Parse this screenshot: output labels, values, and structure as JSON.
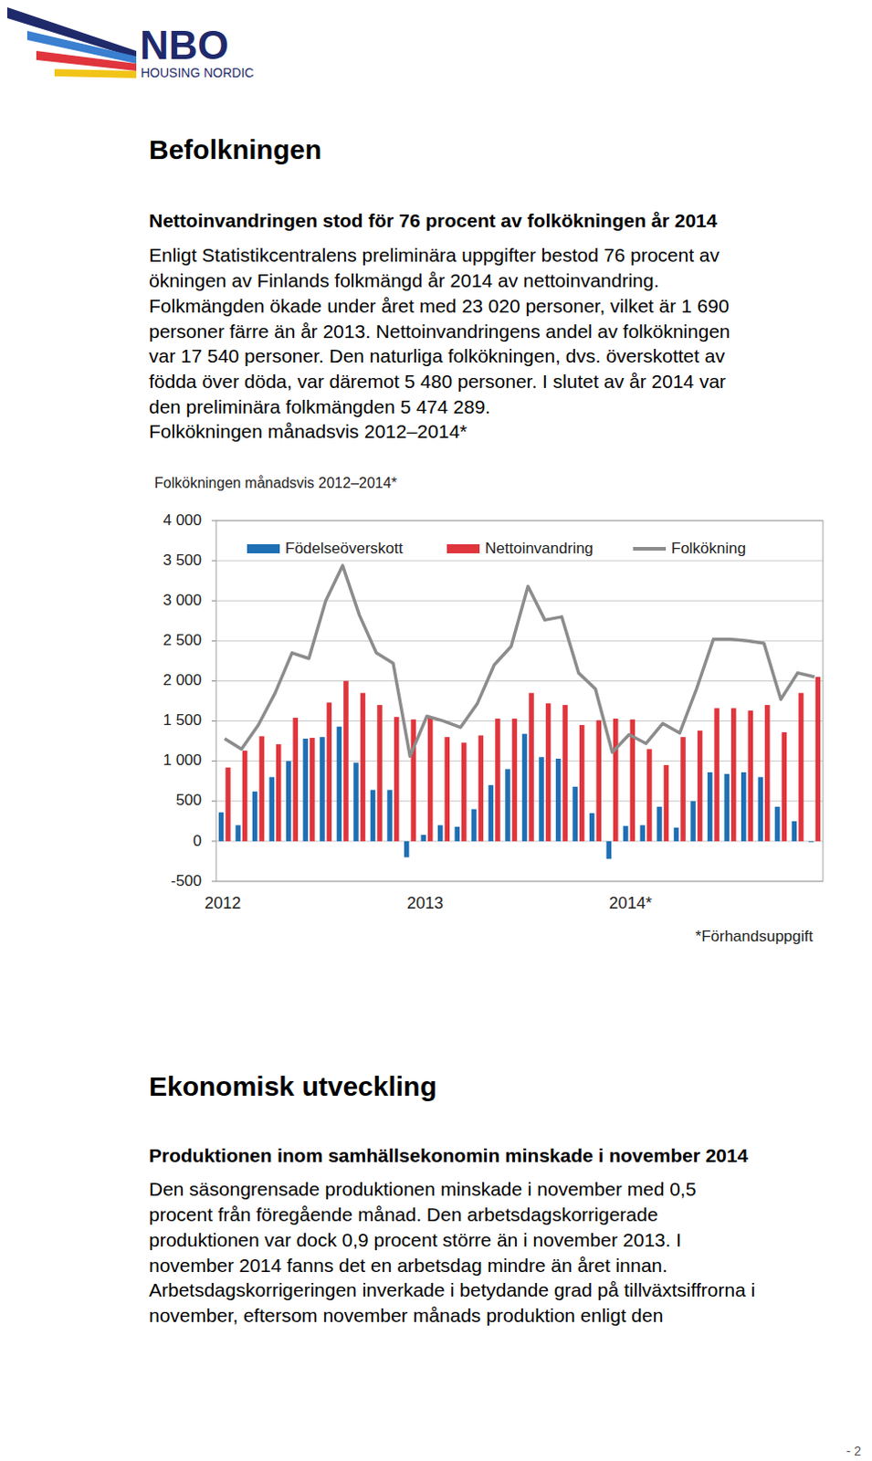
{
  "header": {
    "logo_name": "NBO",
    "logo_tagline": "HOUSING NORDIC"
  },
  "sections": [
    {
      "title": "Befolkningen",
      "subtitle": "Nettoinvandringen stod för 76 procent av folkökningen år 2014",
      "lines": [
        "Enligt Statistikcentralens preliminära uppgifter bestod 76 procent av",
        "ökningen av Finlands folkmängd år 2014 av nettoinvandring.",
        "Folkmängden ökade under året med 23 020 personer, vilket är 1 690",
        "personer färre än år 2013. Nettoinvandringens andel av folkökningen",
        "var 17 540 personer. Den naturliga folkökningen, dvs. överskottet av",
        "födda över döda, var däremot 5 480 personer. I slutet av år 2014 var",
        "den preliminära folkmängden 5 474 289.",
        "Folkökningen månadsvis 2012–2014*"
      ]
    },
    {
      "title": "Ekonomisk utveckling",
      "subtitle": "Produktionen inom samhällsekonomin minskade i november 2014",
      "lines": [
        "Den säsongrensade produktionen minskade i november med 0,5",
        "procent från föregående månad. Den arbetsdagskorrigerade",
        "produktionen var dock 0,9 procent större än i november 2013. I",
        "november 2014 fanns det en arbetsdag mindre än året innan.",
        "Arbetsdagskorrigeringen inverkade i betydande grad på tillväxtsiffrorna i",
        "november, eftersom november månads produktion enligt den"
      ]
    }
  ],
  "footer": {
    "page": "- 2"
  },
  "chart_data": {
    "type": "bar",
    "title": "Folkökningen månadsvis 2012–2014*",
    "annotation": "*Förhandsuppgift",
    "categories": [
      "2012",
      null,
      null,
      null,
      null,
      null,
      null,
      null,
      null,
      null,
      null,
      null,
      "2013",
      null,
      null,
      null,
      null,
      null,
      null,
      null,
      null,
      null,
      null,
      null,
      "2014*",
      null,
      null,
      null,
      null,
      null,
      null,
      null,
      null,
      null,
      null,
      null
    ],
    "series": [
      {
        "name": "Födelseöverskott",
        "type": "bar",
        "color": "#1f6fb4",
        "values": [
          360,
          200,
          620,
          800,
          1000,
          1280,
          1300,
          1430,
          980,
          640,
          640,
          -200,
          80,
          200,
          180,
          400,
          700,
          900,
          1340,
          1050,
          1030,
          680,
          350,
          -220,
          190,
          200,
          430,
          170,
          500,
          860,
          840,
          860,
          800,
          430,
          250,
          -10
        ]
      },
      {
        "name": "Nettoinvandring",
        "type": "bar",
        "color": "#e0353d",
        "values": [
          920,
          1130,
          1310,
          1210,
          1540,
          1290,
          1730,
          2000,
          1850,
          1700,
          1550,
          1520,
          1550,
          1300,
          1230,
          1320,
          1530,
          1530,
          1850,
          1720,
          1700,
          1450,
          1510,
          1530,
          1520,
          1150,
          950,
          1300,
          1380,
          1660,
          1660,
          1630,
          1700,
          1360,
          1850,
          2050
        ]
      },
      {
        "name": "Folkökning",
        "type": "line",
        "color": "#8c8c8c",
        "values": [
          1280,
          1150,
          1450,
          1850,
          2350,
          2280,
          3000,
          3440,
          2820,
          2350,
          2220,
          1060,
          1560,
          1500,
          1420,
          1720,
          2200,
          2430,
          3180,
          2760,
          2800,
          2100,
          1900,
          1110,
          1330,
          1220,
          1470,
          1350,
          1900,
          2520,
          2520,
          2500,
          2470,
          1770,
          2100,
          2050
        ]
      }
    ],
    "ylim": [
      -500,
      4000
    ],
    "yticks": [
      -500,
      0,
      500,
      {
        "value": 1000,
        "label": "1 000"
      },
      {
        "value": 1500,
        "label": "1 500"
      },
      {
        "value": 2000,
        "label": "2 000"
      },
      {
        "value": 2500,
        "label": "2 500"
      },
      {
        "value": 3000,
        "label": "3 000"
      },
      {
        "value": 3500,
        "label": "3 500"
      },
      {
        "value": 4000,
        "label": "4 000"
      }
    ],
    "grid": true,
    "legend": "top"
  }
}
